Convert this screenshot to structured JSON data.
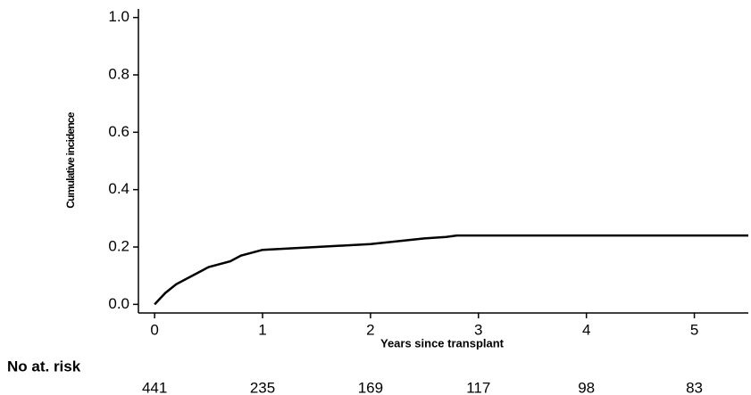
{
  "chart_data": {
    "type": "line",
    "x_label": "Years since transplant",
    "y_label": "Cumulative incidence",
    "x": [
      0,
      0.05,
      0.1,
      0.2,
      0.3,
      0.4,
      0.5,
      0.6,
      0.7,
      0.8,
      0.9,
      1.0,
      1.5,
      2.0,
      2.5,
      2.7,
      2.8,
      5.5
    ],
    "values": [
      0,
      0.02,
      0.04,
      0.07,
      0.09,
      0.11,
      0.13,
      0.14,
      0.15,
      0.17,
      0.18,
      0.19,
      0.2,
      0.21,
      0.23,
      0.235,
      0.24,
      0.24
    ],
    "color": "#000000",
    "xlim": [
      -0.15,
      5.5
    ],
    "ylim": [
      -0.03,
      1.03
    ],
    "xticks": [
      0,
      1,
      2,
      3,
      4,
      5
    ],
    "yticks": [
      {
        "value": 0,
        "label": "0.0"
      },
      0.2,
      0.4,
      0.6,
      0.8,
      {
        "value": 1,
        "label": "1.0"
      }
    ],
    "risk_table": {
      "label": "No at. risk",
      "values": [
        441,
        235,
        169,
        117,
        98,
        83
      ]
    }
  }
}
